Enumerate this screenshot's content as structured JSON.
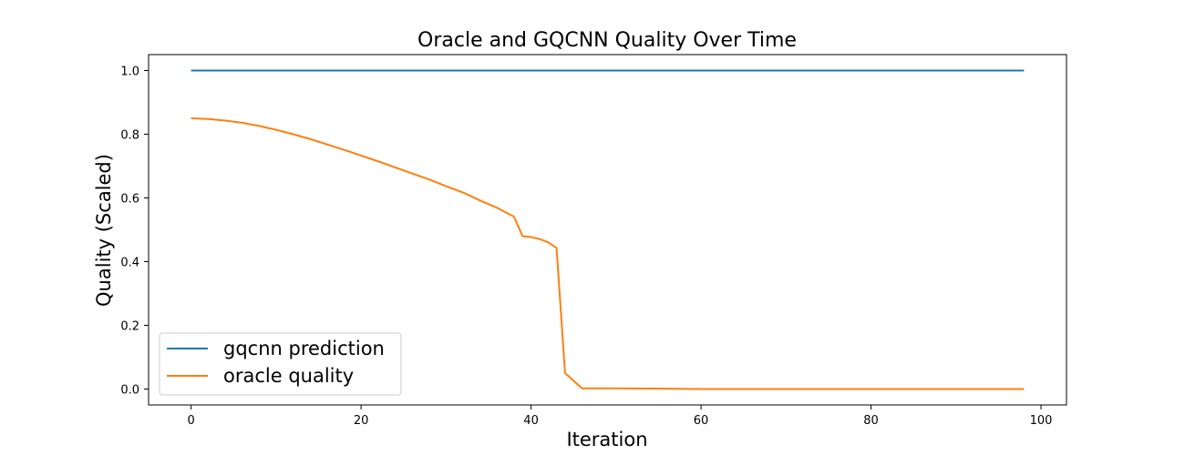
{
  "chart_data": {
    "type": "line",
    "title": "Oracle and GQCNN Quality Over Time",
    "xlabel": "Iteration",
    "ylabel": "Quality (Scaled)",
    "xlim": [
      -5,
      103
    ],
    "ylim": [
      -0.05,
      1.05
    ],
    "xticks": [
      0,
      20,
      40,
      60,
      80,
      100
    ],
    "yticks": [
      0.0,
      0.2,
      0.4,
      0.6,
      0.8,
      1.0
    ],
    "xtick_labels": [
      "0",
      "20",
      "40",
      "60",
      "80",
      "100"
    ],
    "ytick_labels": [
      "0.0",
      "0.2",
      "0.4",
      "0.6",
      "0.8",
      "1.0"
    ],
    "grid": false,
    "legend_position": "lower-left",
    "series": [
      {
        "name": "gqcnn prediction",
        "color": "#1f77b4",
        "x": [
          0,
          98
        ],
        "y": [
          1.0,
          1.0
        ]
      },
      {
        "name": "oracle quality",
        "color": "#ff7f0e",
        "x": [
          0,
          2,
          4,
          6,
          8,
          10,
          12,
          14,
          16,
          18,
          20,
          22,
          24,
          26,
          28,
          30,
          32,
          34,
          36,
          38,
          39,
          40,
          41,
          42,
          43,
          44,
          46,
          50,
          56,
          60,
          70,
          80,
          90,
          98
        ],
        "y": [
          0.85,
          0.848,
          0.843,
          0.836,
          0.826,
          0.814,
          0.8,
          0.785,
          0.768,
          0.751,
          0.733,
          0.715,
          0.696,
          0.677,
          0.658,
          0.637,
          0.617,
          0.592,
          0.569,
          0.541,
          0.48,
          0.477,
          0.471,
          0.461,
          0.443,
          0.05,
          0.002,
          0.002,
          0.001,
          0.0,
          0.0,
          0.0,
          0.0,
          0.0
        ]
      }
    ]
  }
}
